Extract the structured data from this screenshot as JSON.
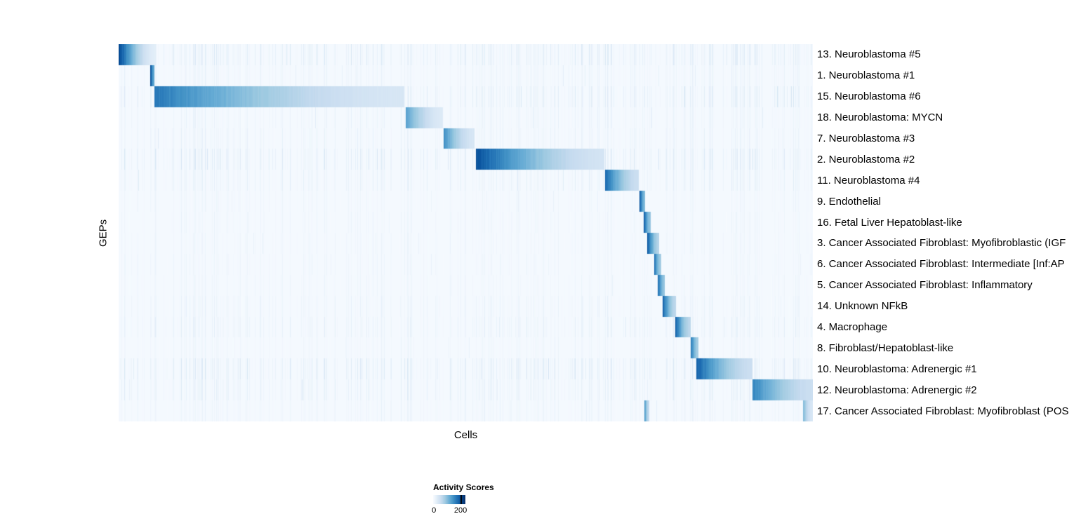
{
  "chart_data": {
    "type": "heatmap",
    "title": "",
    "xlabel": "Cells",
    "ylabel": "GEPs",
    "colormap": "Blues",
    "colormap_stops": [
      "#f7fbff",
      "#deebf7",
      "#c6dbef",
      "#9ecae1",
      "#6baed6",
      "#4292c6",
      "#2171b5",
      "#08519c",
      "#08306b"
    ],
    "value_range": [
      0,
      200
    ],
    "legend": {
      "title": "Activity Scores",
      "min_label": "0",
      "max_label": "200",
      "tick_fraction": 0.85
    },
    "description": "Cells (columns) grouped and sorted by dominant GEP; each row shows a high-activity block (dark blue fading right) along a diagonal staircase over a faint striped background.",
    "rows": [
      {
        "label": "13. Neuroblastoma #5",
        "noise": 0.55,
        "blocks": [
          [
            0.0,
            0.054,
            0.92,
            0.1
          ]
        ]
      },
      {
        "label": "1. Neuroblastoma #1",
        "noise": 0.3,
        "blocks": [
          [
            0.045,
            0.052,
            0.88,
            0.55
          ]
        ]
      },
      {
        "label": "15. Neuroblastoma #6",
        "noise": 0.5,
        "blocks": [
          [
            0.052,
            0.412,
            0.72,
            0.16
          ]
        ]
      },
      {
        "label": "18. Neuroblastoma: MYCN",
        "noise": 0.3,
        "blocks": [
          [
            0.414,
            0.467,
            0.55,
            0.13
          ]
        ]
      },
      {
        "label": "7. Neuroblastoma #3",
        "noise": 0.32,
        "blocks": [
          [
            0.468,
            0.513,
            0.62,
            0.16
          ]
        ]
      },
      {
        "label": "2. Neuroblastoma #2",
        "noise": 0.55,
        "blocks": [
          [
            0.515,
            0.7,
            0.88,
            0.18
          ]
        ]
      },
      {
        "label": "11. Neuroblastoma #4",
        "noise": 0.38,
        "blocks": [
          [
            0.701,
            0.749,
            0.78,
            0.22
          ]
        ]
      },
      {
        "label": "9. Endothelial",
        "noise": 0.22,
        "blocks": [
          [
            0.75,
            0.758,
            0.85,
            0.45
          ]
        ]
      },
      {
        "label": "16. Fetal Liver Hepatoblast-like",
        "noise": 0.22,
        "blocks": [
          [
            0.756,
            0.766,
            0.82,
            0.4
          ]
        ]
      },
      {
        "label": "3. Cancer Associated Fibroblast: Myofibroblastic (IGF",
        "noise": 0.22,
        "blocks": [
          [
            0.761,
            0.779,
            0.85,
            0.3
          ]
        ]
      },
      {
        "label": "6. Cancer Associated Fibroblast: Intermediate [Inf:AP",
        "noise": 0.22,
        "blocks": [
          [
            0.771,
            0.782,
            0.75,
            0.35
          ]
        ]
      },
      {
        "label": "5. Cancer Associated Fibroblast: Inflammatory",
        "noise": 0.22,
        "blocks": [
          [
            0.777,
            0.787,
            0.78,
            0.4
          ]
        ]
      },
      {
        "label": "14. Unknown NFkB",
        "noise": 0.3,
        "blocks": [
          [
            0.784,
            0.803,
            0.8,
            0.28
          ]
        ]
      },
      {
        "label": "4. Macrophage",
        "noise": 0.38,
        "blocks": [
          [
            0.802,
            0.824,
            0.8,
            0.28
          ]
        ]
      },
      {
        "label": "8. Fibroblast/Hepatoblast-like",
        "noise": 0.22,
        "blocks": [
          [
            0.824,
            0.835,
            0.72,
            0.35
          ]
        ]
      },
      {
        "label": "10. Neuroblastoma: Adrenergic #1",
        "noise": 0.55,
        "blocks": [
          [
            0.832,
            0.913,
            0.82,
            0.22
          ]
        ]
      },
      {
        "label": "12. Neuroblastoma: Adrenergic #2",
        "noise": 0.42,
        "blocks": [
          [
            0.913,
            1.0,
            0.68,
            0.22
          ]
        ]
      },
      {
        "label": "17. Cancer Associated Fibroblast: Myofibroblast (POS",
        "noise": 0.28,
        "blocks": [
          [
            0.757,
            0.764,
            0.6,
            0.25
          ],
          [
            0.986,
            1.0,
            0.45,
            0.15
          ]
        ]
      }
    ]
  }
}
